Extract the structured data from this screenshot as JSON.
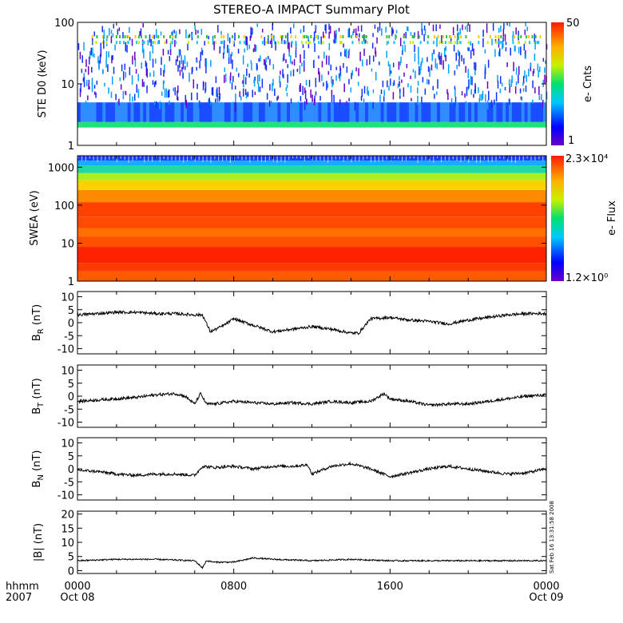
{
  "title": "STEREO-A IMPACT Summary Plot",
  "stamp": "Sat Feb 16 13:31:58 2008",
  "time_axis": {
    "row1_label": "hhmm",
    "row2_label": "2007",
    "ticks": [
      {
        "hour": 0,
        "top": "0000",
        "bottom": "Oct 08"
      },
      {
        "hour": 8,
        "top": "0800",
        "bottom": ""
      },
      {
        "hour": 16,
        "top": "1600",
        "bottom": ""
      },
      {
        "hour": 24,
        "top": "0000",
        "bottom": "Oct 09"
      }
    ],
    "range_hours": [
      0,
      24
    ]
  },
  "colors": {
    "trace": "#000000",
    "frame": "#000000",
    "background": "#ffffff"
  },
  "chart_data": [
    {
      "type": "heatmap",
      "name": "ste",
      "ylabel": "STE D0 (keV)",
      "yscale": "log",
      "ylim": [
        1,
        100
      ],
      "yticks": [
        "100",
        "10",
        "1"
      ],
      "colorbar": {
        "label": "e- Cnts",
        "max_label": "50",
        "min_label": "1",
        "range": [
          1,
          50
        ]
      },
      "description_values": {
        "dense_band_keV": [
          2,
          5
        ],
        "sparse_counts_up_to_keV": 100
      }
    },
    {
      "type": "heatmap",
      "name": "swea",
      "ylabel": "SWEA (eV)",
      "yscale": "log",
      "ylim": [
        1,
        2000
      ],
      "yticks": [
        "1000",
        "100",
        "10",
        "1"
      ],
      "colorbar": {
        "label": "e- Flux",
        "max_label": "2.3×10⁴",
        "min_label": "1.2×10⁰",
        "range": [
          1.2,
          23000
        ]
      }
    },
    {
      "type": "line",
      "name": "br",
      "ylabel": "B_R (nT)",
      "ylim": [
        -12,
        12
      ],
      "yticks": [
        10,
        5,
        0,
        -5,
        -10
      ],
      "x_hours": [
        0,
        1,
        2,
        3,
        4,
        5,
        6,
        6.4,
        6.8,
        7.5,
        8,
        9,
        10,
        11,
        12,
        13,
        14,
        14.4,
        15,
        16,
        17,
        18,
        19,
        20,
        21,
        22,
        23,
        24
      ],
      "values": [
        3,
        3.5,
        4,
        4,
        3.5,
        3.5,
        3,
        3,
        -3.5,
        -1,
        1.5,
        -1,
        -3.5,
        -2.5,
        -1.5,
        -2.5,
        -4,
        -4,
        1.5,
        2,
        1,
        0.5,
        -0.5,
        1,
        2,
        3,
        3.5,
        3.5
      ]
    },
    {
      "type": "line",
      "name": "bt",
      "ylabel": "B_T (nT)",
      "ylim": [
        -12,
        12
      ],
      "yticks": [
        10,
        5,
        0,
        -5,
        -10
      ],
      "x_hours": [
        0,
        1,
        2,
        3,
        4,
        5,
        5.5,
        6,
        6.3,
        6.6,
        7,
        8,
        9,
        10,
        11,
        12,
        13,
        14,
        15,
        15.7,
        16,
        17,
        18,
        19,
        20,
        21,
        22,
        23,
        24
      ],
      "values": [
        -2,
        -1.5,
        -1,
        -0.5,
        0.5,
        1,
        0,
        -3,
        1,
        -3,
        -3,
        -2,
        -2.5,
        -3,
        -2.5,
        -3,
        -2,
        -2.5,
        -2,
        1,
        -1,
        -2,
        -3.5,
        -3,
        -3,
        -2,
        -1,
        0,
        0.5
      ]
    },
    {
      "type": "line",
      "name": "bn",
      "ylabel": "B_N (nT)",
      "ylim": [
        -12,
        12
      ],
      "yticks": [
        10,
        5,
        0,
        -5,
        -10
      ],
      "x_hours": [
        0,
        1,
        2,
        3,
        4,
        5,
        6,
        6.4,
        7,
        8,
        9,
        10,
        11,
        11.8,
        12,
        13,
        14,
        15,
        16,
        17,
        18,
        19,
        20,
        21,
        22,
        23,
        24
      ],
      "values": [
        -0.5,
        -1,
        -2,
        -2.5,
        -2,
        -2,
        -2.5,
        1,
        0.5,
        1,
        0,
        1,
        1,
        1.5,
        -2,
        1,
        2,
        0,
        -3,
        -1.5,
        0,
        1,
        0,
        -1,
        -2,
        -1.5,
        0
      ]
    },
    {
      "type": "line",
      "name": "bmag",
      "ylabel": "|B| (nT)",
      "ylim": [
        -1,
        21
      ],
      "yticks": [
        20,
        15,
        10,
        5,
        0
      ],
      "x_hours": [
        0,
        2,
        4,
        6,
        6.4,
        6.6,
        7,
        8,
        9,
        10,
        12,
        14,
        16,
        18,
        20,
        22,
        24
      ],
      "values": [
        3.5,
        4,
        4,
        3.5,
        1,
        3.5,
        3,
        3,
        4.5,
        4,
        3.5,
        4,
        3.5,
        3.5,
        3.5,
        3.5,
        3.5
      ]
    }
  ]
}
